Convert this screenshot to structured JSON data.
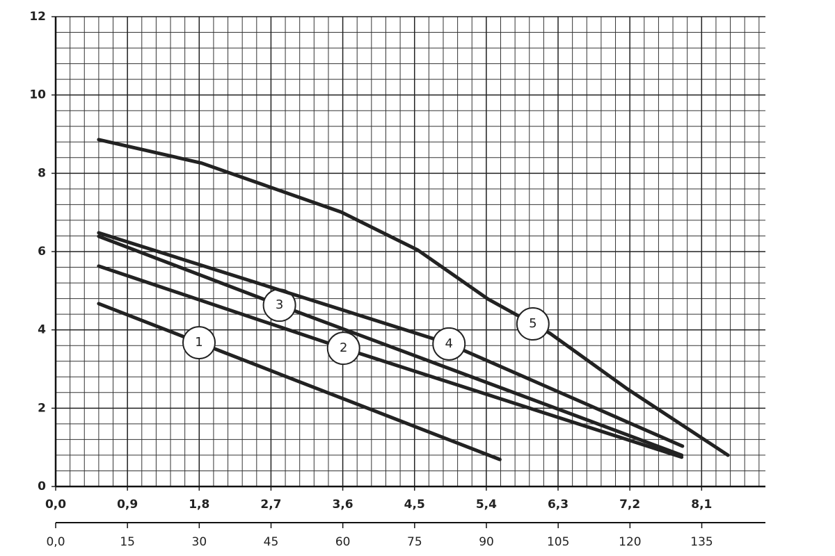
{
  "chart_data": {
    "type": "line",
    "series": [
      {
        "name": "1",
        "color": "#222222",
        "x": [
          0.54,
          3.0,
          5.57
        ],
        "values": [
          4.67,
          2.72,
          0.69
        ]
      },
      {
        "name": "2",
        "color": "#222222",
        "x": [
          0.54,
          3.58,
          7.85
        ],
        "values": [
          5.63,
          3.55,
          0.75
        ]
      },
      {
        "name": "3",
        "color": "#222222",
        "x": [
          0.54,
          2.82,
          7.85
        ],
        "values": [
          6.39,
          4.62,
          0.8
        ]
      },
      {
        "name": "4",
        "color": "#222222",
        "x": [
          0.54,
          4.9,
          7.86
        ],
        "values": [
          6.48,
          3.67,
          1.03
        ]
      },
      {
        "name": "5",
        "color": "#222222",
        "x": [
          0.54,
          1.83,
          3.58,
          4.54,
          5.42,
          6.2,
          7.17,
          8.43
        ],
        "values": [
          8.86,
          8.26,
          7.01,
          6.04,
          4.79,
          3.91,
          2.49,
          0.8
        ]
      }
    ],
    "xlim": [
      0,
      8.9
    ],
    "xticks": [
      {
        "value": 0,
        "label": "0,0"
      },
      {
        "value": 0.9,
        "label": "0,9"
      },
      {
        "value": 1.8,
        "label": "1,8"
      },
      {
        "value": 2.7,
        "label": "2,7"
      },
      {
        "value": 3.6,
        "label": "3,6"
      },
      {
        "value": 4.5,
        "label": "4,5"
      },
      {
        "value": 5.4,
        "label": "5,4"
      },
      {
        "value": 6.3,
        "label": "6,3"
      },
      {
        "value": 7.2,
        "label": "7,2"
      },
      {
        "value": 8.1,
        "label": "8,1"
      }
    ],
    "x2lim": [
      0,
      148.3
    ],
    "x2ticks": [
      {
        "value": 0,
        "label": "0,0"
      },
      15,
      30,
      45,
      60,
      75,
      90,
      105,
      120,
      135
    ],
    "ylim": [
      0,
      12
    ],
    "yticks": [
      0,
      2,
      4,
      6,
      8,
      10,
      12
    ],
    "grid": true
  }
}
